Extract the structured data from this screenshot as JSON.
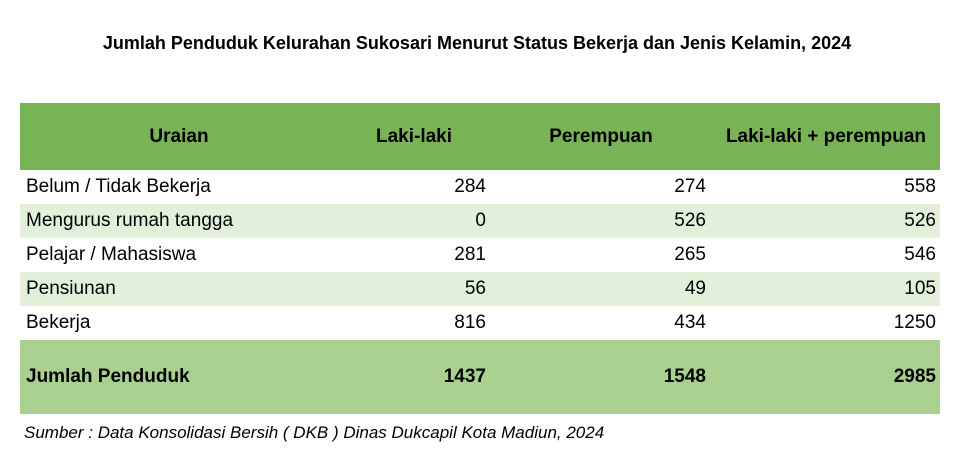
{
  "title": "Jumlah Penduduk Kelurahan Sukosari Menurut Status Bekerja dan Jenis Kelamin, 2024",
  "table": {
    "header": [
      "Uraian",
      "Laki-laki",
      "Perempuan",
      "Laki-laki + perempuan"
    ],
    "rows": [
      [
        "Belum / Tidak Bekerja",
        284,
        274,
        558
      ],
      [
        "Mengurus rumah tangga",
        0,
        526,
        526
      ],
      [
        "Pelajar / Mahasiswa",
        281,
        265,
        546
      ],
      [
        "Pensiunan",
        56,
        49,
        105
      ],
      [
        "Bekerja",
        816,
        434,
        1250
      ]
    ],
    "total": [
      "Jumlah Penduduk",
      1437,
      1548,
      2985
    ]
  },
  "source": "Sumber : Data Konsolidasi Bersih ( DKB ) Dinas Dukcapil Kota Madiun, 2024"
}
